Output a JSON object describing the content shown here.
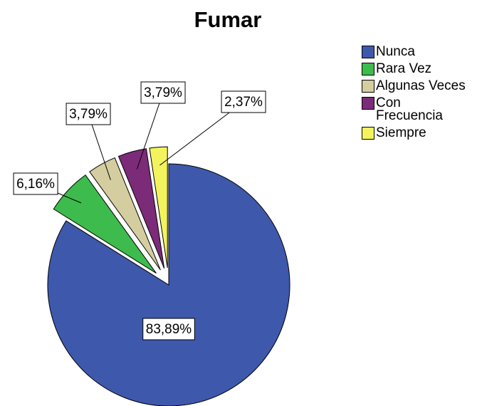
{
  "chart_data": {
    "type": "pie",
    "title": "Fumar",
    "categories": [
      "Nunca",
      "Rara Vez",
      "Algunas Veces",
      "Con Frecuencia",
      "Siempre"
    ],
    "values": [
      83.89,
      6.16,
      3.79,
      3.79,
      2.37
    ],
    "value_labels": [
      "83,89%",
      "6,16%",
      "3,79%",
      "3,79%",
      "2,37%"
    ],
    "colors": [
      "#3e58ac",
      "#3dbb4c",
      "#d4cd9f",
      "#7c2b78",
      "#f3f35e"
    ],
    "legend": "right"
  }
}
